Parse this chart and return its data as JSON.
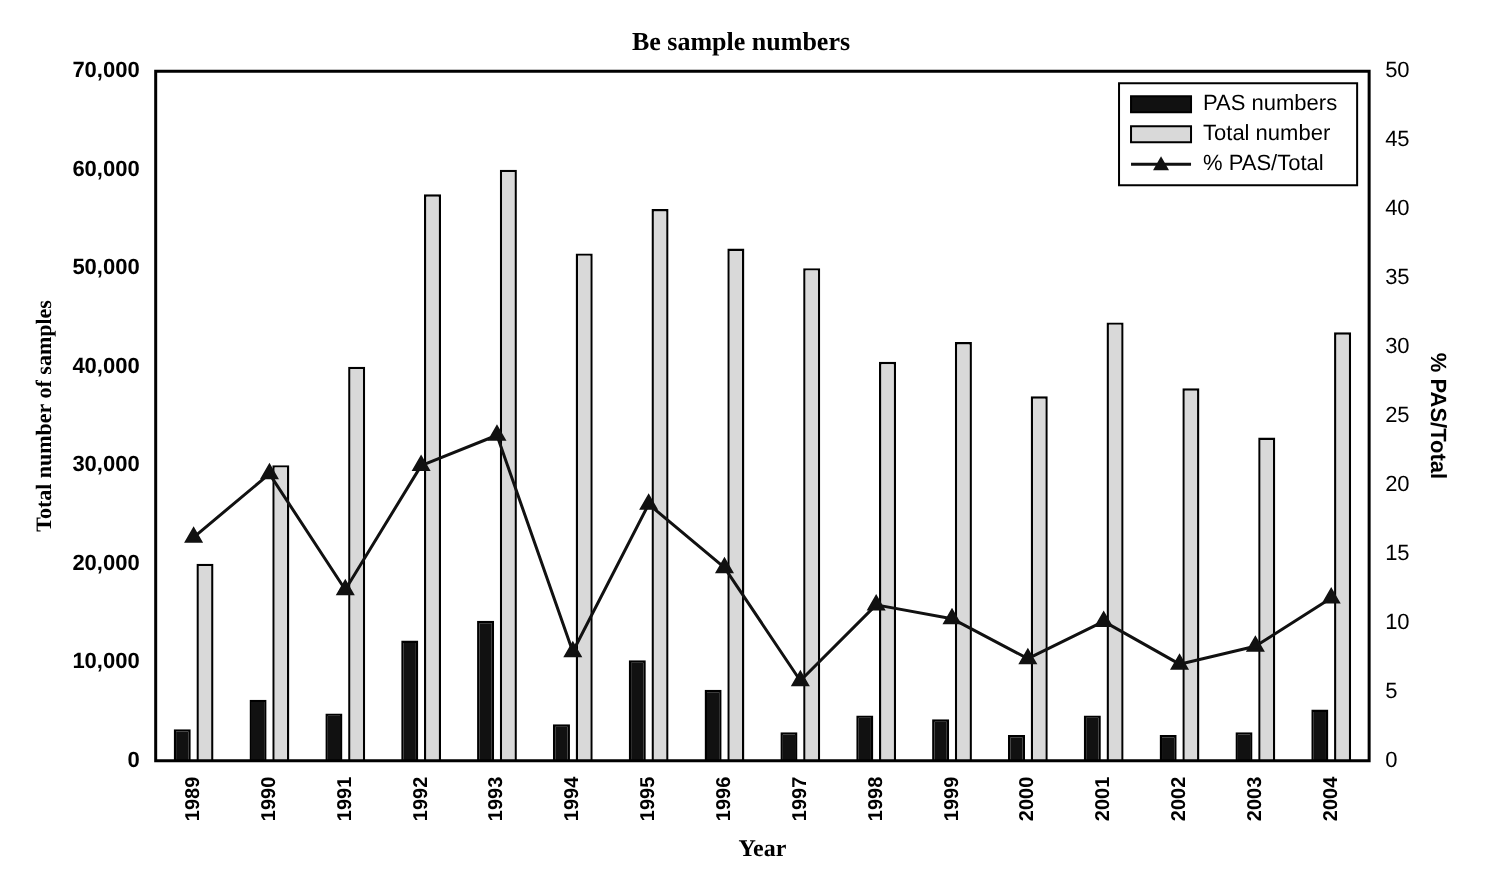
{
  "chart_data": {
    "type": "bar",
    "title": "Be sample numbers",
    "xlabel": "Year",
    "ylabel": "Total number of samples",
    "y2label": "% PAS/Total",
    "categories": [
      "1989",
      "1990",
      "1991",
      "1992",
      "1993",
      "1994",
      "1995",
      "1996",
      "1997",
      "1998",
      "1999",
      "2000",
      "2001",
      "2002",
      "2003",
      "2004"
    ],
    "series": [
      {
        "name": "PAS numbers",
        "color": "#111111",
        "values": [
          3200,
          6200,
          4800,
          12200,
          14200,
          3700,
          10200,
          7200,
          2900,
          4600,
          4200,
          2600,
          4600,
          2600,
          2900,
          5200
        ]
      },
      {
        "name": "Total number",
        "color": "#d9d9d9",
        "values": [
          20000,
          30000,
          40000,
          57500,
          60000,
          51500,
          56000,
          52000,
          50000,
          40500,
          42500,
          37000,
          44500,
          37800,
          32800,
          43500
        ]
      },
      {
        "name": "% PAS/Total",
        "type": "line",
        "axis": "y2",
        "color": "#111111",
        "marker": "triangle",
        "values": [
          16.2,
          20.8,
          12.4,
          21.4,
          23.6,
          7.9,
          18.6,
          14.0,
          5.8,
          11.3,
          10.3,
          7.4,
          10.1,
          7.0,
          8.3,
          11.8
        ]
      }
    ],
    "ylim": [
      0,
      70000
    ],
    "yticks": [
      {
        "value": 0,
        "label": "0"
      },
      {
        "value": 10000,
        "label": "10,000"
      },
      {
        "value": 20000,
        "label": "20,000"
      },
      {
        "value": 30000,
        "label": "30,000"
      },
      {
        "value": 40000,
        "label": "40,000"
      },
      {
        "value": 50000,
        "label": "50,000"
      },
      {
        "value": 60000,
        "label": "60,000"
      },
      {
        "value": 70000,
        "label": "70,000"
      }
    ],
    "y2lim": [
      0,
      50
    ],
    "y2ticks": [
      0,
      5,
      10,
      15,
      20,
      25,
      30,
      35,
      40,
      45,
      50
    ],
    "grid": false,
    "legend": "top right"
  }
}
